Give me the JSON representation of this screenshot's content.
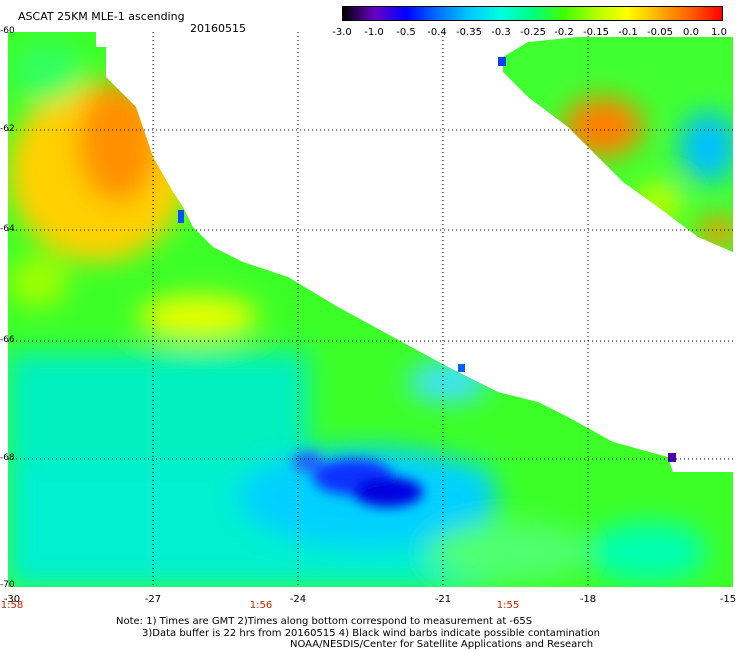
{
  "title": "ASCAT 25KM MLE-1 ascending",
  "date": "20160515",
  "colorbar": {
    "labels": [
      "-3.0",
      "-1.0",
      "-0.5",
      "-0.4",
      "-0.35",
      "-0.3",
      "-0.25",
      "-0.2",
      "-0.15",
      "-0.1",
      "-0.05",
      "0.0",
      "1.0"
    ],
    "colors": [
      "#000000",
      "#6a00c8",
      "#0000ff",
      "#0070ff",
      "#00c8ff",
      "#00ffe0",
      "#00ff80",
      "#40ff00",
      "#b0ff00",
      "#ffff00",
      "#ffb000",
      "#ff6000",
      "#ff0000"
    ]
  },
  "latitude_labels": [
    "-60",
    "-62",
    "-64",
    "-66",
    "-68",
    "-70"
  ],
  "longitude_labels": [
    "-30",
    "-27",
    "-24",
    "-21",
    "-18",
    "-15"
  ],
  "time_labels": [
    "1:58",
    "1:56",
    "1:55"
  ],
  "notes": [
    "Note: 1) Times are GMT 2)Times along bottom correspond to measurement at -65S",
    "3)Data buffer is 22 hrs from 20160515 4) Black wind barbs indicate possible contamination",
    "NOAA/NESDIS/Center for Satellite Applications and Research"
  ]
}
